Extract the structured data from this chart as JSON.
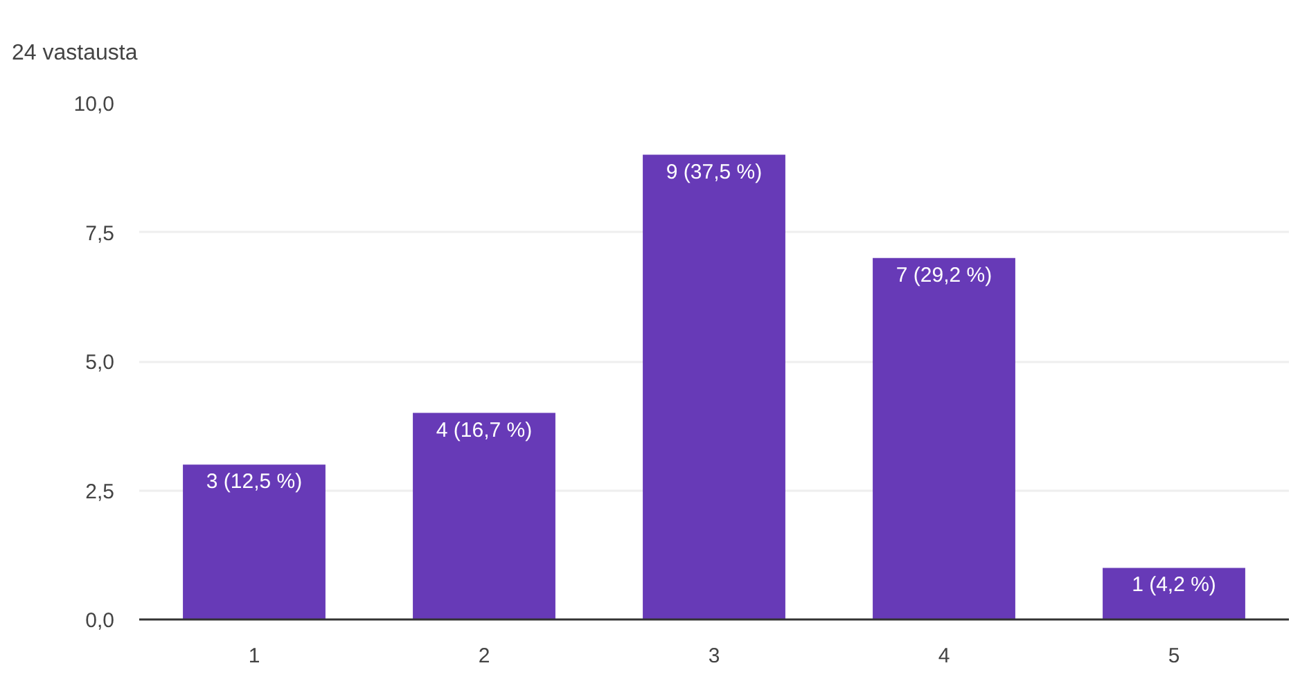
{
  "chart_data": {
    "type": "bar",
    "title": "24 vastausta",
    "categories": [
      "1",
      "2",
      "3",
      "4",
      "5"
    ],
    "values": [
      3,
      4,
      9,
      7,
      1
    ],
    "value_labels": [
      "3 (12,5 %)",
      "4 (16,7 %)",
      "9 (37,5 %)",
      "7 (29,2 %)",
      "1 (4,2 %)"
    ],
    "color": "#673ab7",
    "ylim": [
      0,
      10
    ],
    "yticks": [
      {
        "value": 0,
        "label": "0,0"
      },
      {
        "value": 2.5,
        "label": "2,5"
      },
      {
        "value": 5,
        "label": "5,0"
      },
      {
        "value": 7.5,
        "label": "7,5"
      },
      {
        "value": 10,
        "label": "10,0"
      }
    ],
    "grid": "y"
  }
}
